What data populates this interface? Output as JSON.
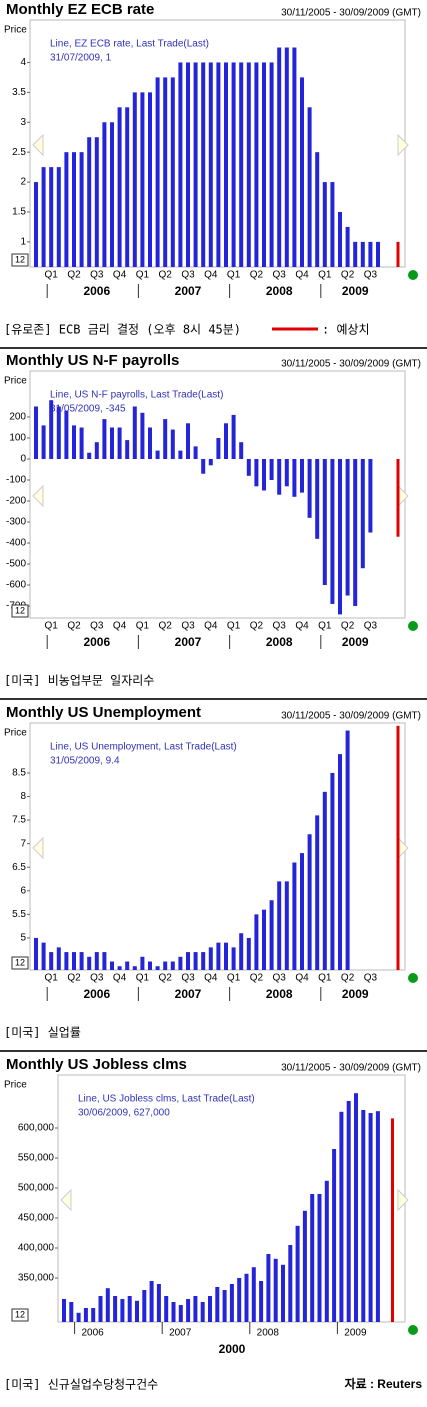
{
  "chart_data": [
    {
      "type": "bar",
      "title": "Monthly EZ ECB rate",
      "date_range": "30/11/2005 - 30/09/2009 (GMT)",
      "y_label": "Price",
      "box_label": "12",
      "annotation": [
        "Line, EZ ECB rate, Last Trade(Last)",
        "31/07/2009, 1"
      ],
      "ylim": [
        0.58,
        4.71
      ],
      "yticks": [
        1,
        1.5,
        2,
        2.5,
        3,
        3.5,
        4
      ],
      "quarters": [
        "Q1",
        "Q2",
        "Q3",
        "Q4",
        "Q1",
        "Q2",
        "Q3",
        "Q4",
        "Q1",
        "Q2",
        "Q3",
        "Q4",
        "Q1",
        "Q2",
        "Q3"
      ],
      "years": [
        "2006",
        "2007",
        "2008",
        "2009"
      ],
      "series": [
        {
          "name": "EZ ECB rate",
          "color": "#2424d8",
          "values": [
            2,
            2.25,
            2.25,
            2.25,
            2.5,
            2.5,
            2.5,
            2.75,
            2.75,
            3,
            3,
            3.25,
            3.25,
            3.5,
            3.5,
            3.5,
            3.75,
            3.75,
            3.75,
            4,
            4,
            4,
            4,
            4,
            4,
            4,
            4,
            4,
            4,
            4,
            4,
            4,
            4.25,
            4.25,
            4.25,
            3.75,
            3.25,
            2.5,
            2,
            2,
            1.5,
            1.25,
            1,
            1,
            1,
            1
          ]
        }
      ],
      "forecast": {
        "value": 1,
        "color": "#e00000"
      },
      "caption": "[유로존] ECB 금리 결정 (오후 8시 45분)",
      "forecast_label": ": 예상치"
    },
    {
      "type": "bar",
      "title": "Monthly US N-F payrolls",
      "date_range": "30/11/2005 - 30/09/2009 (GMT)",
      "y_label": "Price",
      "box_label": "12",
      "annotation": [
        "Line, US N-F payrolls, Last Trade(Last)",
        "31/05/2009, -345"
      ],
      "ylim": [
        -757,
        419
      ],
      "yticks": [
        -700,
        -600,
        -500,
        -400,
        -300,
        -200,
        -100,
        0,
        100,
        200
      ],
      "quarters": [
        "Q1",
        "Q2",
        "Q3",
        "Q4",
        "Q1",
        "Q2",
        "Q3",
        "Q4",
        "Q1",
        "Q2",
        "Q3",
        "Q4",
        "Q1",
        "Q2",
        "Q3"
      ],
      "years": [
        "2006",
        "2007",
        "2008",
        "2009"
      ],
      "series": [
        {
          "name": "US N-F payrolls",
          "color": "#2424d8",
          "values": [
            250,
            160,
            280,
            250,
            230,
            160,
            150,
            30,
            80,
            190,
            150,
            150,
            90,
            250,
            220,
            150,
            40,
            190,
            140,
            40,
            170,
            60,
            -70,
            -30,
            100,
            170,
            210,
            80,
            -80,
            -130,
            -150,
            -100,
            -170,
            -130,
            -180,
            -160,
            -280,
            -380,
            -600,
            -690,
            -740,
            -650,
            -700,
            -520,
            -350
          ]
        }
      ],
      "forecast": {
        "value": -370,
        "color": "#e00000"
      },
      "caption": "[미국] 비농업부문 일자리수"
    },
    {
      "type": "bar",
      "title": "Monthly US Unemployment",
      "date_range": "30/11/2005 - 30/09/2009 (GMT)",
      "y_label": "Price",
      "box_label": "12",
      "annotation": [
        "Line, US Unemployment, Last Trade(Last)",
        "31/05/2009, 9.4"
      ],
      "ylim": [
        4.32,
        9.56
      ],
      "yticks": [
        5,
        5.5,
        6,
        6.5,
        7,
        7.5,
        8,
        8.5
      ],
      "quarters": [
        "Q1",
        "Q2",
        "Q3",
        "Q4",
        "Q1",
        "Q2",
        "Q3",
        "Q4",
        "Q1",
        "Q2",
        "Q3",
        "Q4",
        "Q1",
        "Q2",
        "Q3"
      ],
      "years": [
        "2006",
        "2007",
        "2008",
        "2009"
      ],
      "series": [
        {
          "name": "US Unemployment",
          "color": "#2424d8",
          "values": [
            5,
            4.9,
            4.7,
            4.8,
            4.7,
            4.7,
            4.7,
            4.6,
            4.7,
            4.7,
            4.5,
            4.4,
            4.5,
            4.4,
            4.6,
            4.5,
            4.4,
            4.5,
            4.5,
            4.6,
            4.7,
            4.7,
            4.7,
            4.8,
            4.9,
            4.9,
            4.8,
            5.1,
            5,
            5.5,
            5.6,
            5.8,
            6.2,
            6.2,
            6.6,
            6.8,
            7.2,
            7.6,
            8.1,
            8.5,
            8.9,
            9.4
          ]
        }
      ],
      "forecast": {
        "value": 9.5,
        "color": "#e00000"
      },
      "caption": "[미국] 실업률"
    },
    {
      "type": "bar",
      "title": "Monthly US Jobless clms",
      "date_range": "30/11/2005 - 30/09/2009 (GMT)",
      "y_label": "Price",
      "box_label": "12",
      "annotation": [
        "Line, US Jobless clms, Last Trade(Last)",
        "30/06/2009, 627,000"
      ],
      "ylim": [
        276667,
        688333
      ],
      "yticks": [
        {
          "value": 350000,
          "label": "350,000"
        },
        {
          "value": 400000,
          "label": "400,000"
        },
        {
          "value": 450000,
          "label": "450,000"
        },
        {
          "value": 500000,
          "label": "500,000"
        },
        {
          "value": 550000,
          "label": "550,000"
        },
        {
          "value": 600000,
          "label": "600,000"
        }
      ],
      "years": [
        "2006",
        "2007",
        "2008",
        "2009"
      ],
      "decade": "2000",
      "series": [
        {
          "name": "US Jobless clms",
          "color": "#2424d8",
          "values": [
            315,
            310,
            292,
            300,
            300,
            320,
            333,
            320,
            315,
            320,
            312,
            330,
            345,
            340,
            320,
            310,
            305,
            315,
            320,
            310,
            320,
            335,
            330,
            340,
            350,
            357,
            368,
            345,
            390,
            382,
            372,
            405,
            437,
            462,
            490,
            490,
            512,
            565,
            627,
            645,
            658,
            630,
            625,
            628
          ]
        }
      ],
      "value_scale": 1000,
      "forecast": {
        "value": 616000,
        "color": "#e00000"
      },
      "caption": "[미국] 신규실업수당청구건수",
      "source": "자료 : Reuters"
    }
  ]
}
